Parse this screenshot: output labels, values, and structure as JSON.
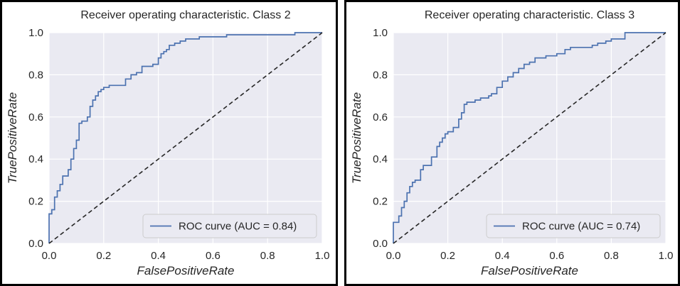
{
  "chart_data": [
    {
      "type": "line",
      "title": "Receiver operating characteristic. Class 2",
      "xlabel": "FalsePositiveRate",
      "ylabel": "TruePositiveRate",
      "xlim": [
        0.0,
        1.0
      ],
      "ylim": [
        0.0,
        1.0
      ],
      "xticks": [
        "0.0",
        "0.2",
        "0.4",
        "0.6",
        "0.8",
        "1.0"
      ],
      "yticks": [
        "0.0",
        "0.2",
        "0.4",
        "0.6",
        "0.8",
        "1.0"
      ],
      "grid": true,
      "legend_position": "lower-right",
      "series": [
        {
          "name": "ROC curve (AUC = 0.84)",
          "style": "solid",
          "color": "#4c72b0",
          "x": [
            0.0,
            0.0,
            0.01,
            0.01,
            0.02,
            0.02,
            0.03,
            0.03,
            0.04,
            0.04,
            0.05,
            0.05,
            0.07,
            0.07,
            0.08,
            0.08,
            0.09,
            0.09,
            0.1,
            0.1,
            0.11,
            0.11,
            0.12,
            0.12,
            0.14,
            0.14,
            0.15,
            0.15,
            0.16,
            0.16,
            0.17,
            0.17,
            0.18,
            0.18,
            0.19,
            0.19,
            0.2,
            0.2,
            0.22,
            0.22,
            0.28,
            0.28,
            0.3,
            0.3,
            0.32,
            0.32,
            0.34,
            0.34,
            0.38,
            0.38,
            0.4,
            0.4,
            0.41,
            0.41,
            0.42,
            0.42,
            0.43,
            0.43,
            0.44,
            0.44,
            0.46,
            0.46,
            0.48,
            0.48,
            0.5,
            0.5,
            0.55,
            0.55,
            0.65,
            0.65,
            0.9,
            0.9,
            1.0
          ],
          "y": [
            0.0,
            0.14,
            0.14,
            0.16,
            0.16,
            0.22,
            0.22,
            0.25,
            0.25,
            0.28,
            0.28,
            0.32,
            0.32,
            0.35,
            0.35,
            0.4,
            0.4,
            0.45,
            0.45,
            0.49,
            0.49,
            0.57,
            0.57,
            0.58,
            0.58,
            0.6,
            0.6,
            0.65,
            0.65,
            0.68,
            0.68,
            0.7,
            0.7,
            0.72,
            0.72,
            0.73,
            0.73,
            0.74,
            0.74,
            0.75,
            0.75,
            0.78,
            0.78,
            0.8,
            0.8,
            0.81,
            0.81,
            0.84,
            0.84,
            0.85,
            0.85,
            0.88,
            0.88,
            0.9,
            0.9,
            0.91,
            0.91,
            0.92,
            0.92,
            0.94,
            0.94,
            0.95,
            0.95,
            0.96,
            0.96,
            0.97,
            0.97,
            0.98,
            0.98,
            0.99,
            0.99,
            1.0,
            1.0
          ]
        },
        {
          "name": "",
          "style": "dashed",
          "color": "#262626",
          "x": [
            0.0,
            1.0
          ],
          "y": [
            0.0,
            1.0
          ]
        }
      ]
    },
    {
      "type": "line",
      "title": "Receiver operating characteristic. Class 3",
      "xlabel": "FalsePositiveRate",
      "ylabel": "TruePositiveRate",
      "xlim": [
        0.0,
        1.0
      ],
      "ylim": [
        0.0,
        1.0
      ],
      "xticks": [
        "0.0",
        "0.2",
        "0.4",
        "0.6",
        "0.8",
        "1.0"
      ],
      "yticks": [
        "0.0",
        "0.2",
        "0.4",
        "0.6",
        "0.8",
        "1.0"
      ],
      "grid": true,
      "legend_position": "lower-right",
      "series": [
        {
          "name": "ROC curve (AUC = 0.74)",
          "style": "solid",
          "color": "#4c72b0",
          "x": [
            0.0,
            0.0,
            0.02,
            0.02,
            0.03,
            0.03,
            0.04,
            0.04,
            0.05,
            0.05,
            0.06,
            0.06,
            0.07,
            0.07,
            0.08,
            0.08,
            0.1,
            0.1,
            0.11,
            0.11,
            0.14,
            0.14,
            0.16,
            0.16,
            0.17,
            0.17,
            0.18,
            0.18,
            0.19,
            0.19,
            0.2,
            0.2,
            0.22,
            0.22,
            0.24,
            0.24,
            0.25,
            0.25,
            0.26,
            0.26,
            0.27,
            0.27,
            0.3,
            0.3,
            0.32,
            0.32,
            0.35,
            0.35,
            0.36,
            0.36,
            0.38,
            0.38,
            0.4,
            0.4,
            0.42,
            0.42,
            0.44,
            0.44,
            0.46,
            0.46,
            0.48,
            0.48,
            0.5,
            0.5,
            0.52,
            0.52,
            0.56,
            0.56,
            0.6,
            0.6,
            0.63,
            0.63,
            0.65,
            0.65,
            0.73,
            0.73,
            0.75,
            0.75,
            0.78,
            0.78,
            0.8,
            0.8,
            0.85,
            0.85,
            1.0
          ],
          "y": [
            0.0,
            0.1,
            0.1,
            0.13,
            0.13,
            0.17,
            0.17,
            0.2,
            0.2,
            0.24,
            0.24,
            0.27,
            0.27,
            0.29,
            0.29,
            0.3,
            0.3,
            0.35,
            0.35,
            0.37,
            0.37,
            0.41,
            0.41,
            0.46,
            0.46,
            0.48,
            0.48,
            0.5,
            0.5,
            0.52,
            0.52,
            0.53,
            0.53,
            0.55,
            0.55,
            0.59,
            0.59,
            0.62,
            0.62,
            0.66,
            0.66,
            0.67,
            0.67,
            0.68,
            0.68,
            0.69,
            0.69,
            0.7,
            0.7,
            0.71,
            0.71,
            0.74,
            0.74,
            0.77,
            0.77,
            0.79,
            0.79,
            0.81,
            0.81,
            0.83,
            0.83,
            0.85,
            0.85,
            0.86,
            0.86,
            0.88,
            0.88,
            0.89,
            0.89,
            0.9,
            0.9,
            0.92,
            0.92,
            0.93,
            0.93,
            0.94,
            0.94,
            0.95,
            0.95,
            0.96,
            0.96,
            0.97,
            0.97,
            1.0,
            1.0
          ]
        },
        {
          "name": "",
          "style": "dashed",
          "color": "#262626",
          "x": [
            0.0,
            1.0
          ],
          "y": [
            0.0,
            1.0
          ]
        }
      ]
    }
  ],
  "style": {
    "plot_background": "#eaeaf2",
    "grid_color": "#ffffff",
    "text_color": "#262626"
  }
}
